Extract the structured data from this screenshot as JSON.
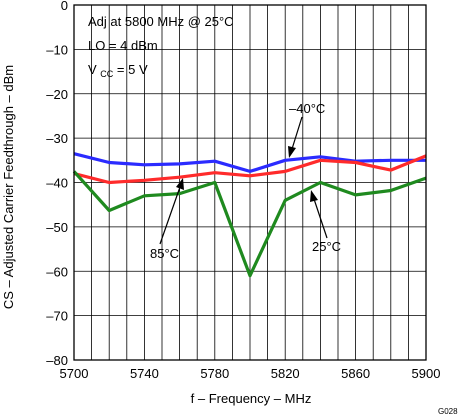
{
  "chart_data": {
    "type": "line",
    "xlabel": "f – Frequency – MHz",
    "ylabel": "CS – Adjusted Carrier Feedthrough – dBm",
    "xlim": [
      5700,
      5900
    ],
    "ylim": [
      -80,
      0
    ],
    "x_ticks": [
      5700,
      5740,
      5780,
      5820,
      5860,
      5900
    ],
    "y_ticks": [
      0,
      -10,
      -20,
      -30,
      -40,
      -50,
      -60,
      -70,
      -80
    ],
    "x_tick_labels": [
      "5700",
      "5740",
      "5780",
      "5820",
      "5860",
      "5900"
    ],
    "y_tick_labels": [
      "0",
      "–10",
      "–20",
      "–30",
      "–40",
      "–50",
      "–60",
      "–70",
      "–80"
    ],
    "grid": true,
    "x": [
      5700,
      5720,
      5740,
      5760,
      5780,
      5800,
      5820,
      5840,
      5860,
      5880,
      5900
    ],
    "series": [
      {
        "name": "–40°C",
        "color": "#2b2bff",
        "values": [
          -33.5,
          -35.5,
          -36.0,
          -35.8,
          -35.2,
          -37.5,
          -35.0,
          -34.2,
          -35.2,
          -35.0,
          -35.0
        ]
      },
      {
        "name": "85°C",
        "color": "#ff2b2b",
        "values": [
          -38.0,
          -40.0,
          -39.5,
          -38.8,
          -37.8,
          -38.5,
          -37.5,
          -35.0,
          -35.5,
          -37.2,
          -34.0
        ]
      },
      {
        "name": "25°C",
        "color": "#1f8a1f",
        "values": [
          -37.5,
          -46.3,
          -43.0,
          -42.5,
          -40.0,
          -61.0,
          -44.0,
          -40.0,
          -42.8,
          -41.8,
          -39.0
        ]
      }
    ],
    "annotation_lines": [
      "Adj at 5800 MHz @ 25°C",
      "LO = 4 dBm",
      "V",
      "CC",
      " =  5 V"
    ],
    "figure_id": "G028"
  }
}
